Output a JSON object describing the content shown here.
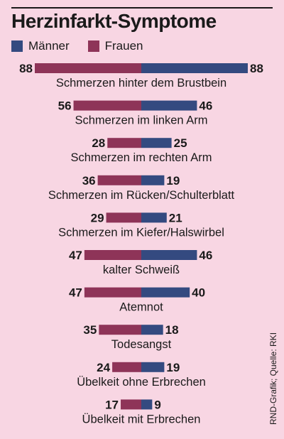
{
  "header": {
    "title": "Herzinfarkt-Symptome"
  },
  "legend": [
    {
      "label": "Männer",
      "color": "#344a80"
    },
    {
      "label": "Frauen",
      "color": "#8e3458"
    }
  ],
  "source": "RND-Grafik; Quelle: RKI",
  "chart_data": {
    "type": "bar",
    "title": "Herzinfarkt-Symptome",
    "layout": "diverging-horizontal",
    "categories": [
      "Schmerzen hinter dem Brustbein",
      "Schmerzen im linken Arm",
      "Schmerzen im rechten Arm",
      "Schmerzen im Rücken/Schulterblatt",
      "Schmerzen im Kiefer/Halswirbel",
      "kalter Schweiß",
      "Atemnot",
      "Todesangst",
      "Übelkeit ohne Erbrechen",
      "Übelkeit mit Erbrechen"
    ],
    "series": [
      {
        "name": "Frauen",
        "color": "#8e3458",
        "side": "left",
        "values": [
          88,
          56,
          28,
          36,
          29,
          47,
          47,
          35,
          24,
          17
        ]
      },
      {
        "name": "Männer",
        "color": "#344a80",
        "side": "right",
        "values": [
          88,
          46,
          25,
          19,
          21,
          46,
          40,
          18,
          19,
          9
        ]
      }
    ],
    "xlim": [
      0,
      88
    ],
    "grid": false,
    "legend_position": "top-left"
  }
}
